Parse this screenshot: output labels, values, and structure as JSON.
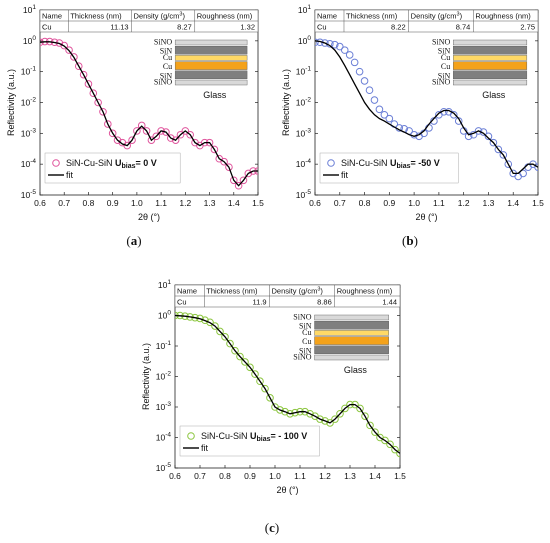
{
  "chart_data": [
    {
      "id": "a",
      "type": "scatter",
      "caption": "(a)",
      "caption_letter": "a",
      "xlabel": "2θ (°)",
      "ylabel": "Reflectivity (a.u.)",
      "xlim": [
        0.6,
        1.5
      ],
      "ylim": [
        1e-05,
        10
      ],
      "yscale": "log",
      "xticks": [
        "0.6",
        "0.7",
        "0.8",
        "0.9",
        "1.0",
        "1.1",
        "1.2",
        "1.3",
        "1.4",
        "1.5"
      ],
      "yticks": [
        "10-5",
        "10-4",
        "10-3",
        "10-2",
        "10-1",
        "100",
        "101"
      ],
      "table": {
        "headers": [
          "Name",
          "Thickness (nm)",
          "Density (g/cm3)",
          "Roughness (nm)"
        ],
        "row": [
          "Cu",
          "11.13",
          "8.27",
          "1.32"
        ]
      },
      "stack_layers": [
        "SiNO",
        "SiN",
        "Cu",
        "Cu",
        "SiN",
        "SiNO"
      ],
      "substrate": "Glass",
      "marker_color": "#e0559d",
      "legend": {
        "series_prefix": "SiN-Cu-SiN",
        "bias_label": "U",
        "bias_sub": "bias",
        "bias_value": "= 0 V",
        "fit": "fit"
      },
      "series": [
        {
          "name": "SiN-Cu-SiN Ubias= 0 V",
          "x": [
            0.6,
            0.62,
            0.64,
            0.66,
            0.68,
            0.7,
            0.72,
            0.74,
            0.76,
            0.78,
            0.8,
            0.82,
            0.84,
            0.86,
            0.88,
            0.9,
            0.92,
            0.94,
            0.96,
            0.98,
            1.0,
            1.02,
            1.04,
            1.06,
            1.08,
            1.1,
            1.12,
            1.14,
            1.16,
            1.18,
            1.2,
            1.22,
            1.24,
            1.26,
            1.28,
            1.3,
            1.32,
            1.34,
            1.36,
            1.38,
            1.4,
            1.42,
            1.44,
            1.46,
            1.48,
            1.5
          ],
          "y": [
            0.9,
            0.95,
            0.95,
            0.9,
            0.85,
            0.7,
            0.5,
            0.3,
            0.15,
            0.08,
            0.04,
            0.02,
            0.01,
            0.005,
            0.002,
            0.001,
            0.0006,
            0.0005,
            0.0004,
            0.0006,
            0.0012,
            0.0018,
            0.0012,
            0.0006,
            0.0008,
            0.0012,
            0.0011,
            0.0007,
            0.0006,
            0.0009,
            0.0012,
            0.0009,
            0.0005,
            0.0004,
            0.0005,
            0.0005,
            0.0003,
            0.00015,
            0.00012,
            8e-05,
            3e-05,
            2e-05,
            3e-05,
            5e-05,
            6e-05,
            6e-05
          ]
        },
        {
          "name": "fit",
          "x": [
            0.6,
            0.62,
            0.64,
            0.66,
            0.68,
            0.7,
            0.72,
            0.74,
            0.76,
            0.78,
            0.8,
            0.82,
            0.84,
            0.86,
            0.88,
            0.9,
            0.92,
            0.94,
            0.96,
            0.98,
            1.0,
            1.02,
            1.04,
            1.06,
            1.08,
            1.1,
            1.12,
            1.14,
            1.16,
            1.18,
            1.2,
            1.22,
            1.24,
            1.26,
            1.28,
            1.3,
            1.32,
            1.34,
            1.36,
            1.38,
            1.4,
            1.42,
            1.44,
            1.46,
            1.48,
            1.5
          ],
          "y": [
            0.9,
            0.93,
            0.93,
            0.88,
            0.82,
            0.68,
            0.48,
            0.29,
            0.15,
            0.08,
            0.04,
            0.02,
            0.01,
            0.005,
            0.002,
            0.001,
            0.0006,
            0.00045,
            0.0004,
            0.0006,
            0.0012,
            0.0017,
            0.0012,
            0.0006,
            0.0008,
            0.0012,
            0.0011,
            0.0007,
            0.0006,
            0.0009,
            0.0012,
            0.0009,
            0.0005,
            0.0004,
            0.0005,
            0.0005,
            0.0003,
            0.00015,
            0.00012,
            8e-05,
            3e-05,
            2e-05,
            3e-05,
            5e-05,
            6e-05,
            6e-05
          ]
        }
      ]
    },
    {
      "id": "b",
      "type": "scatter",
      "caption": "(b)",
      "caption_letter": "b",
      "xlabel": "2θ (°)",
      "ylabel": "Reflectivity (a.u.)",
      "xlim": [
        0.6,
        1.5
      ],
      "ylim": [
        1e-05,
        10
      ],
      "yscale": "log",
      "xticks": [
        "0.6",
        "0.7",
        "0.8",
        "0.9",
        "1.0",
        "1.1",
        "1.2",
        "1.3",
        "1.4",
        "1.5"
      ],
      "yticks": [
        "10-5",
        "10-4",
        "10-3",
        "10-2",
        "10-1",
        "100",
        "101"
      ],
      "table": {
        "headers": [
          "Name",
          "Thickness (nm)",
          "Density (g/cm3)",
          "Roughness (nm)"
        ],
        "row": [
          "Cu",
          "8.22",
          "8.74",
          "2.75"
        ]
      },
      "stack_layers": [
        "SiNO",
        "SiN",
        "Cu",
        "Cu",
        "SiN",
        "SiNO"
      ],
      "substrate": "Glass",
      "marker_color": "#6b7fd6",
      "legend": {
        "series_prefix": "SiN-Cu-SiN",
        "bias_label": "U",
        "bias_sub": "bias",
        "bias_value": "= -50 V",
        "fit": "fit"
      },
      "series": [
        {
          "name": "SiN-Cu-SiN Ubias= -50 V",
          "x": [
            0.6,
            0.62,
            0.64,
            0.66,
            0.68,
            0.7,
            0.72,
            0.74,
            0.76,
            0.78,
            0.8,
            0.82,
            0.84,
            0.86,
            0.88,
            0.9,
            0.92,
            0.94,
            0.96,
            0.98,
            1.0,
            1.02,
            1.04,
            1.06,
            1.08,
            1.1,
            1.12,
            1.14,
            1.16,
            1.18,
            1.2,
            1.22,
            1.24,
            1.26,
            1.28,
            1.3,
            1.32,
            1.34,
            1.36,
            1.38,
            1.4,
            1.42,
            1.44,
            1.46,
            1.48,
            1.5
          ],
          "y": [
            0.9,
            0.9,
            0.85,
            0.8,
            0.75,
            0.65,
            0.5,
            0.35,
            0.2,
            0.1,
            0.05,
            0.025,
            0.012,
            0.006,
            0.004,
            0.003,
            0.002,
            0.0015,
            0.0014,
            0.0012,
            0.0009,
            0.0008,
            0.001,
            0.0015,
            0.0025,
            0.004,
            0.005,
            0.005,
            0.004,
            0.0025,
            0.0012,
            0.0008,
            0.0009,
            0.0012,
            0.0011,
            0.0008,
            0.0005,
            0.0003,
            0.0002,
            0.0001,
            5e-05,
            4e-05,
            5e-05,
            8e-05,
            0.0001,
            8e-05
          ]
        },
        {
          "name": "fit",
          "x": [
            0.6,
            0.62,
            0.64,
            0.66,
            0.68,
            0.7,
            0.72,
            0.74,
            0.76,
            0.78,
            0.8,
            0.82,
            0.84,
            0.86,
            0.88,
            0.9,
            0.92,
            0.94,
            0.96,
            0.98,
            1.0,
            1.02,
            1.04,
            1.06,
            1.08,
            1.1,
            1.12,
            1.14,
            1.16,
            1.18,
            1.2,
            1.22,
            1.24,
            1.26,
            1.28,
            1.3,
            1.32,
            1.34,
            1.36,
            1.38,
            1.4,
            1.42,
            1.44,
            1.46,
            1.48,
            1.5
          ],
          "y": [
            1.0,
            0.95,
            0.85,
            0.7,
            0.5,
            0.3,
            0.16,
            0.08,
            0.04,
            0.02,
            0.01,
            0.006,
            0.004,
            0.003,
            0.0025,
            0.002,
            0.0016,
            0.0013,
            0.0011,
            0.0009,
            0.0008,
            0.0009,
            0.0012,
            0.002,
            0.003,
            0.0045,
            0.0055,
            0.0055,
            0.0045,
            0.003,
            0.0015,
            0.0009,
            0.001,
            0.0012,
            0.001,
            0.0007,
            0.0005,
            0.0003,
            0.0002,
            0.0001,
            5e-05,
            5e-05,
            7e-05,
            0.0001,
            0.0001,
            8e-05
          ]
        }
      ]
    },
    {
      "id": "c",
      "type": "scatter",
      "caption": "(c)",
      "caption_letter": "c",
      "xlabel": "2θ (°)",
      "ylabel": "Reflectivity (a.u.)",
      "xlim": [
        0.6,
        1.5
      ],
      "ylim": [
        1e-05,
        10
      ],
      "yscale": "log",
      "xticks": [
        "0.6",
        "0.7",
        "0.8",
        "0.9",
        "1.0",
        "1.1",
        "1.2",
        "1.3",
        "1.4",
        "1.5"
      ],
      "yticks": [
        "10-5",
        "10-4",
        "10-3",
        "10-2",
        "10-1",
        "100",
        "101"
      ],
      "table": {
        "headers": [
          "Name",
          "Thickness (nm)",
          "Density (g/cm3)",
          "Roughness (nm)"
        ],
        "row": [
          "Cu",
          "11.9",
          "8.86",
          "1.44"
        ]
      },
      "stack_layers": [
        "SiNO",
        "SiN",
        "Cu",
        "Cu",
        "SiN",
        "SiNO"
      ],
      "substrate": "Glass",
      "marker_color": "#8cc63f",
      "legend": {
        "series_prefix": "SiN-Cu-SiN",
        "bias_label": "U",
        "bias_sub": "bias",
        "bias_value": "= - 100 V",
        "fit": "fit"
      },
      "series": [
        {
          "name": "SiN-Cu-SiN Ubias= - 100 V",
          "x": [
            0.6,
            0.62,
            0.64,
            0.66,
            0.68,
            0.7,
            0.72,
            0.74,
            0.76,
            0.78,
            0.8,
            0.82,
            0.84,
            0.86,
            0.88,
            0.9,
            0.92,
            0.94,
            0.96,
            0.98,
            1.0,
            1.02,
            1.04,
            1.06,
            1.08,
            1.1,
            1.12,
            1.14,
            1.16,
            1.18,
            1.2,
            1.22,
            1.24,
            1.26,
            1.28,
            1.3,
            1.32,
            1.34,
            1.36,
            1.38,
            1.4,
            1.42,
            1.44,
            1.46,
            1.48,
            1.5
          ],
          "y": [
            1.0,
            1.0,
            0.95,
            0.9,
            0.85,
            0.8,
            0.7,
            0.6,
            0.45,
            0.3,
            0.2,
            0.12,
            0.07,
            0.045,
            0.03,
            0.02,
            0.012,
            0.007,
            0.004,
            0.002,
            0.001,
            0.0008,
            0.0007,
            0.0006,
            0.00065,
            0.0007,
            0.0007,
            0.0006,
            0.0005,
            0.0004,
            0.00035,
            0.0003,
            0.0004,
            0.0006,
            0.0009,
            0.0012,
            0.0012,
            0.0009,
            0.0005,
            0.00025,
            0.00015,
            0.0001,
            8e-05,
            6e-05,
            4e-05,
            3e-05
          ]
        },
        {
          "name": "fit",
          "x": [
            0.6,
            0.62,
            0.64,
            0.66,
            0.68,
            0.7,
            0.72,
            0.74,
            0.76,
            0.78,
            0.8,
            0.82,
            0.84,
            0.86,
            0.88,
            0.9,
            0.92,
            0.94,
            0.96,
            0.98,
            1.0,
            1.02,
            1.04,
            1.06,
            1.08,
            1.1,
            1.12,
            1.14,
            1.16,
            1.18,
            1.2,
            1.22,
            1.24,
            1.26,
            1.28,
            1.3,
            1.32,
            1.34,
            1.36,
            1.38,
            1.4,
            1.42,
            1.44,
            1.46,
            1.48,
            1.5
          ],
          "y": [
            1.0,
            0.98,
            0.95,
            0.9,
            0.85,
            0.78,
            0.68,
            0.58,
            0.45,
            0.3,
            0.2,
            0.12,
            0.07,
            0.045,
            0.03,
            0.02,
            0.012,
            0.007,
            0.004,
            0.002,
            0.001,
            0.0008,
            0.0007,
            0.0006,
            0.00065,
            0.0007,
            0.0007,
            0.0006,
            0.0005,
            0.0004,
            0.00035,
            0.0003,
            0.0004,
            0.0006,
            0.0009,
            0.0012,
            0.0012,
            0.0009,
            0.0005,
            0.00025,
            0.00015,
            0.0001,
            8e-05,
            6e-05,
            4e-05,
            3e-05
          ]
        }
      ]
    }
  ]
}
